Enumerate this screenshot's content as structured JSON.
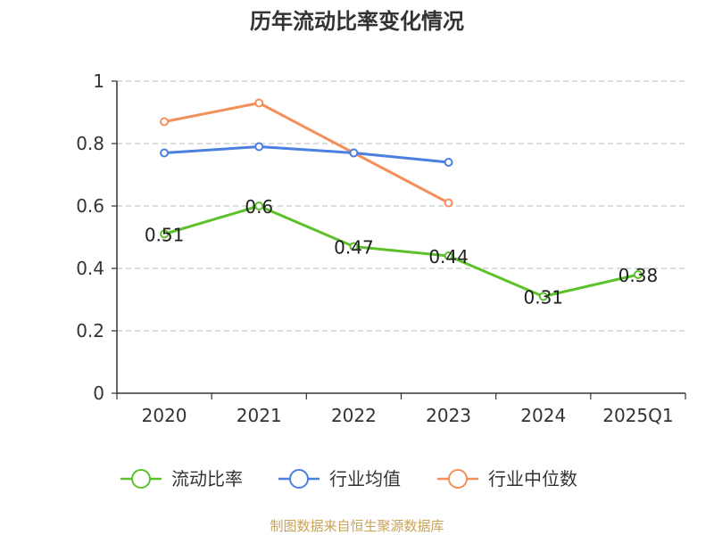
{
  "chart_data": {
    "type": "line",
    "title": "历年流动比率变化情况",
    "categories": [
      "2020",
      "2021",
      "2022",
      "2023",
      "2024",
      "2025Q1"
    ],
    "ylim": [
      0,
      1
    ],
    "yticks": [
      0,
      0.2,
      0.4,
      0.6,
      0.8,
      1
    ],
    "ytick_labels": [
      "0",
      "0.2",
      "0.4",
      "0.6",
      "0.8",
      "1"
    ],
    "grid": true,
    "legend_position": "bottom",
    "series": [
      {
        "name": "流动比率",
        "color": "#5dc129",
        "values": [
          0.51,
          0.6,
          0.47,
          0.44,
          0.31,
          0.38
        ],
        "labels": [
          "0.51",
          "0.6",
          "0.47",
          "0.44",
          "0.31",
          "0.38"
        ],
        "show_labels": true
      },
      {
        "name": "行业均值",
        "color": "#4b7fe0",
        "values": [
          0.77,
          0.79,
          0.77,
          0.74,
          null,
          null
        ],
        "show_labels": false
      },
      {
        "name": "行业中位数",
        "color": "#f58f5a",
        "values": [
          0.87,
          0.93,
          0.77,
          0.61,
          null,
          null
        ],
        "show_labels": false
      }
    ],
    "source": "制图数据来自恒生聚源数据库"
  }
}
